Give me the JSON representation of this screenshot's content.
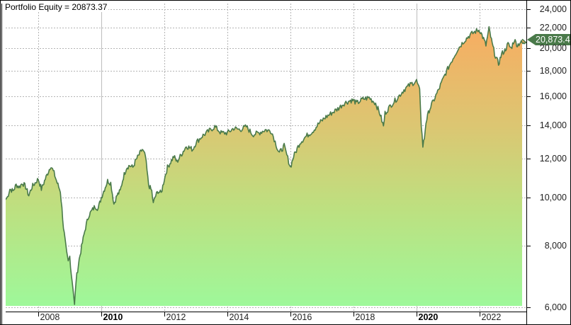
{
  "chart_data": {
    "type": "area",
    "title": "Portfolio Equity = 20873.37",
    "xlabel": "",
    "ylabel": "",
    "y_scale": "log",
    "ylim": [
      6000,
      24000
    ],
    "y_ticks": [
      "24,000",
      "22,000",
      "20,000",
      "18,000",
      "16,000",
      "14,000",
      "12,000",
      "10,000",
      "8,000",
      "6,000"
    ],
    "y_tick_values": [
      24000,
      22000,
      20000,
      18000,
      16000,
      14000,
      12000,
      10000,
      8000,
      6000
    ],
    "x_ticks": [
      "2008",
      "2010",
      "2012",
      "2014",
      "2016",
      "2018",
      "2020",
      "2022"
    ],
    "x_ticks_bold": [
      "2010",
      "2020"
    ],
    "grid": true,
    "last_value_label": "20,873.4",
    "last_value": 20873.37,
    "series": [
      {
        "name": "Portfolio Equity",
        "line_color": "#4a7a4a",
        "fill_gradient_top": "#f5b060",
        "fill_gradient_bottom": "#9ef79a",
        "x": [
          2007.0,
          2007.1,
          2007.2,
          2007.3,
          2007.4,
          2007.5,
          2007.6,
          2007.7,
          2007.8,
          2007.9,
          2008.0,
          2008.1,
          2008.2,
          2008.3,
          2008.4,
          2008.5,
          2008.6,
          2008.7,
          2008.75,
          2008.8,
          2008.85,
          2008.9,
          2008.95,
          2009.0,
          2009.05,
          2009.1,
          2009.15,
          2009.2,
          2009.3,
          2009.4,
          2009.5,
          2009.6,
          2009.7,
          2009.8,
          2009.9,
          2010.0,
          2010.1,
          2010.2,
          2010.3,
          2010.4,
          2010.5,
          2010.6,
          2010.7,
          2010.8,
          2010.9,
          2011.0,
          2011.1,
          2011.2,
          2011.3,
          2011.4,
          2011.5,
          2011.6,
          2011.65,
          2011.7,
          2011.8,
          2011.9,
          2012.0,
          2012.1,
          2012.2,
          2012.3,
          2012.4,
          2012.5,
          2012.6,
          2012.7,
          2012.8,
          2012.9,
          2013.0,
          2013.2,
          2013.4,
          2013.6,
          2013.8,
          2014.0,
          2014.2,
          2014.4,
          2014.6,
          2014.8,
          2015.0,
          2015.2,
          2015.4,
          2015.6,
          2015.65,
          2015.8,
          2016.0,
          2016.1,
          2016.3,
          2016.5,
          2016.7,
          2016.9,
          2017.1,
          2017.3,
          2017.5,
          2017.7,
          2017.9,
          2018.0,
          2018.1,
          2018.3,
          2018.5,
          2018.7,
          2018.85,
          2018.95,
          2019.0,
          2019.2,
          2019.4,
          2019.6,
          2019.8,
          2020.0,
          2020.1,
          2020.15,
          2020.2,
          2020.25,
          2020.3,
          2020.4,
          2020.5,
          2020.7,
          2020.9,
          2021.1,
          2021.3,
          2021.5,
          2021.7,
          2021.9,
          2022.0,
          2022.1,
          2022.2,
          2022.3,
          2022.4,
          2022.5,
          2022.6,
          2022.7,
          2022.8,
          2022.9,
          2023.0,
          2023.1,
          2023.2,
          2023.3,
          2023.4,
          2023.5
        ],
        "values": [
          9900,
          10400,
          10300,
          10600,
          10500,
          10700,
          10500,
          10100,
          10500,
          10700,
          10900,
          10400,
          10800,
          11200,
          11600,
          11200,
          10700,
          10300,
          9500,
          8700,
          8200,
          7700,
          7400,
          7600,
          7000,
          6600,
          6050,
          6800,
          7500,
          8100,
          8700,
          9200,
          9400,
          9600,
          9500,
          10000,
          10400,
          10800,
          10700,
          9700,
          10100,
          10300,
          11000,
          11500,
          11600,
          11500,
          11900,
          12200,
          12500,
          12100,
          10600,
          10300,
          9700,
          10000,
          10300,
          10200,
          10900,
          11500,
          11800,
          12100,
          11800,
          12100,
          12400,
          12700,
          12600,
          12500,
          12900,
          13300,
          13600,
          13900,
          13500,
          13500,
          13800,
          13700,
          13900,
          13400,
          13500,
          13700,
          13600,
          12500,
          12300,
          12700,
          11500,
          12100,
          12900,
          13300,
          13600,
          14100,
          14500,
          14800,
          15100,
          15500,
          15700,
          15700,
          15500,
          15800,
          15900,
          15500,
          14700,
          13900,
          14800,
          15400,
          15900,
          16500,
          16900,
          17200,
          16400,
          14000,
          12700,
          13200,
          14200,
          15000,
          15500,
          16500,
          17700,
          18800,
          19900,
          20700,
          21300,
          21700,
          21800,
          21100,
          20300,
          21900,
          20400,
          19300,
          18600,
          19500,
          19800,
          20400,
          20000,
          20800,
          20300,
          20600,
          20400,
          20873
        ]
      }
    ]
  },
  "badge": {
    "arrow_color": "#4a7a4a"
  }
}
